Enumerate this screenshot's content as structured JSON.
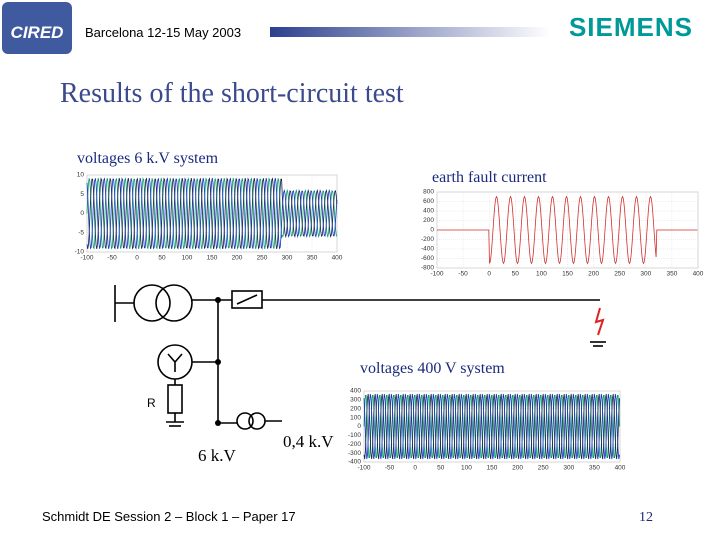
{
  "header": {
    "logo": "CIRED",
    "event": "Barcelona  12-15 May 2003",
    "brand": "SIEMENS"
  },
  "title": "Results of the short-circuit test",
  "plots": [
    {
      "label": "voltages 6 k.V system",
      "xlim": [
        -100,
        400
      ],
      "xticks": [
        -100,
        -50,
        0,
        50,
        100,
        150,
        200,
        250,
        300,
        350,
        400
      ],
      "ylim": [
        -10,
        10
      ],
      "yticks": [
        -10,
        -5,
        0,
        5,
        10
      ]
    },
    {
      "label": "earth fault current",
      "xlim": [
        -100,
        400
      ],
      "xticks": [
        -100,
        -50,
        0,
        50,
        100,
        150,
        200,
        250,
        300,
        350,
        400
      ],
      "ylim": [
        -800,
        800
      ],
      "yticks": [
        -800,
        -600,
        -400,
        -200,
        0,
        200,
        400,
        600,
        800
      ]
    },
    {
      "label": "voltages 400 V system",
      "xlim": [
        -100,
        400
      ],
      "xticks": [
        -100,
        -50,
        0,
        50,
        100,
        150,
        200,
        250,
        300,
        350,
        400
      ],
      "ylim": [
        -400,
        400
      ],
      "yticks": [
        -400,
        -300,
        -200,
        -100,
        0,
        100,
        200,
        300,
        400
      ]
    }
  ],
  "diagram": {
    "resistor": "R",
    "mv": "6 k.V",
    "lv": "0,4 k.V"
  },
  "footer": {
    "text": "Schmidt DE  Session 2 – Block 1 – Paper 17",
    "page": "12"
  }
}
